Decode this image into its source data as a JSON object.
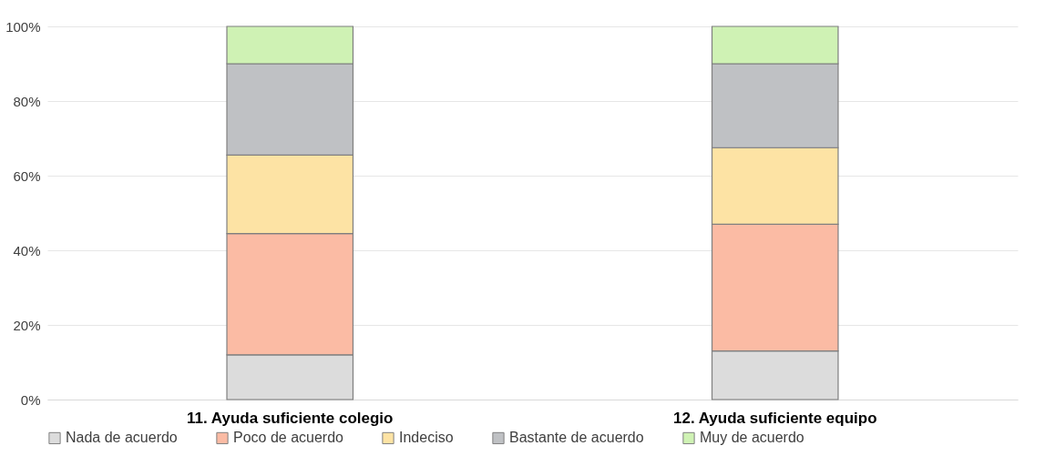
{
  "chart_data": {
    "type": "bar",
    "stacked": true,
    "categories": [
      "11. Ayuda suficiente colegio",
      "12. Ayuda suficiente equipo"
    ],
    "series": [
      {
        "name": "Nada de acuerdo",
        "color": "#dcdcdc",
        "values": [
          12,
          13
        ]
      },
      {
        "name": "Poco de acuerdo",
        "color": "#fbbba4",
        "values": [
          32.5,
          34
        ]
      },
      {
        "name": "Indeciso",
        "color": "#fde3a4",
        "values": [
          21,
          20.5
        ]
      },
      {
        "name": "Bastante de acuerdo",
        "color": "#bfc1c4",
        "values": [
          24.5,
          22.5
        ]
      },
      {
        "name": "Muy de acuerdo",
        "color": "#cff2b4",
        "values": [
          10,
          10
        ]
      }
    ],
    "ylim": [
      0,
      100
    ],
    "yticks": [
      {
        "value": 0,
        "label": "0%"
      },
      {
        "value": 20,
        "label": "20%"
      },
      {
        "value": 40,
        "label": "40%"
      },
      {
        "value": 60,
        "label": "60%"
      },
      {
        "value": 80,
        "label": "80%"
      },
      {
        "value": 100,
        "label": "100%"
      }
    ],
    "grid": "y",
    "legend": "bottom"
  }
}
